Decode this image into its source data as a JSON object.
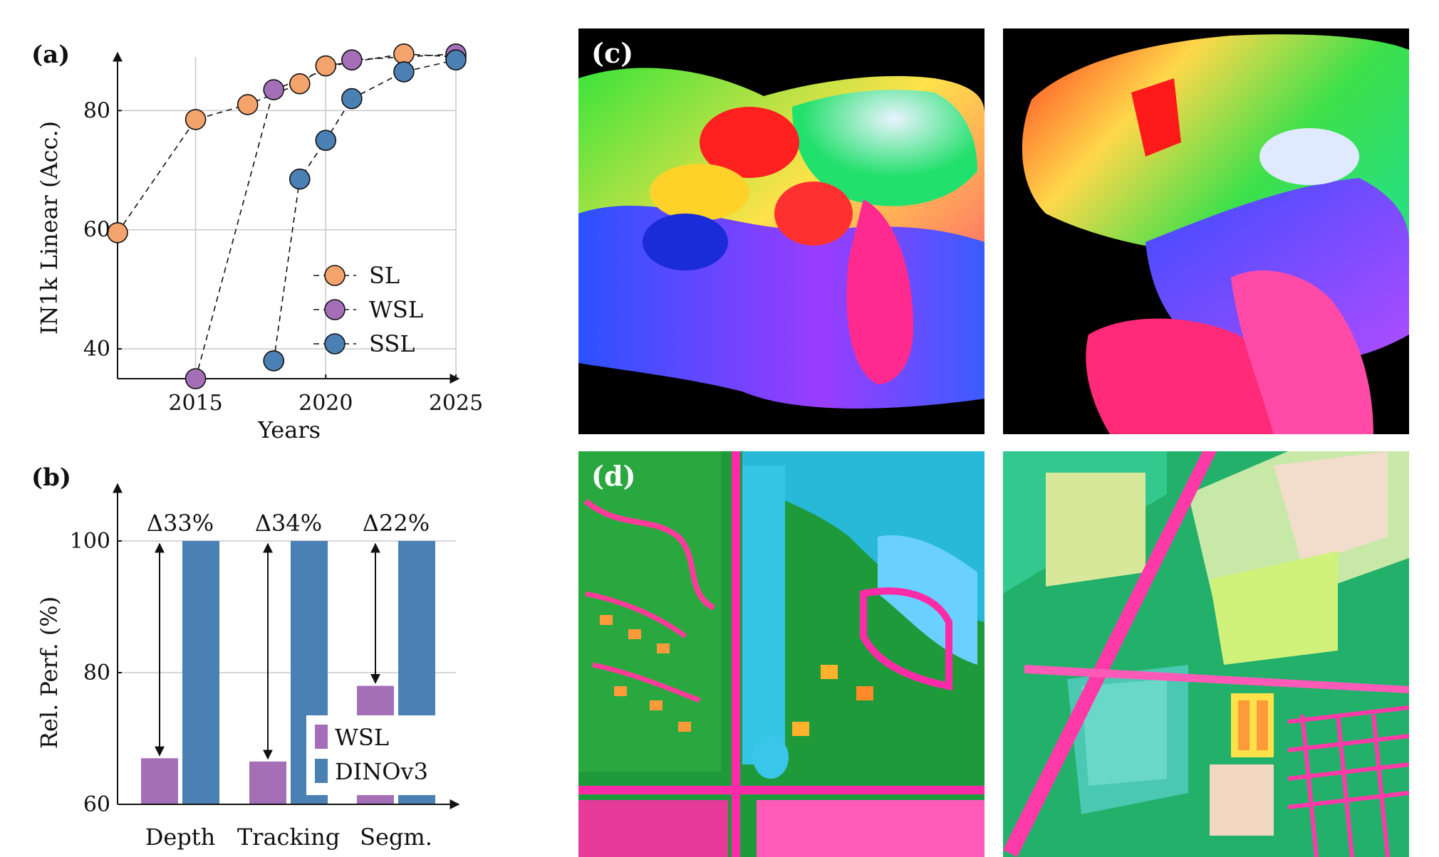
{
  "panels": {
    "a": "(a)",
    "b": "(b)",
    "c": "(c)",
    "d": "(d)"
  },
  "colors": {
    "SL": "#f4a36c",
    "WSL": "#a56fb8",
    "SSL": "#4b80b5",
    "DINOv3": "#4b80b5",
    "grid": "#c8c8c8"
  },
  "icons": {
    "legend-marker": "circle",
    "arrow": "double-headed-vertical-arrow",
    "image-c": "pca-feature-map-cat",
    "image-d": "pca-feature-map-satellite"
  },
  "chart_data": [
    {
      "id": "a",
      "type": "scatter",
      "title": "",
      "xlabel": "Years",
      "ylabel": "IN1k Linear (Acc.)",
      "xlim": [
        2012,
        2025
      ],
      "ylim": [
        35,
        89
      ],
      "xticks": [
        "2015",
        "2020",
        "2025"
      ],
      "yticks": [
        "40",
        "60",
        "80"
      ],
      "grid": true,
      "legend": "center-right",
      "series": [
        {
          "name": "SL",
          "x": [
            2012,
            2015,
            2017,
            2019,
            2020,
            2023,
            2025
          ],
          "y": [
            59.5,
            78.5,
            81,
            84.5,
            87.5,
            89.5,
            89
          ]
        },
        {
          "name": "WSL",
          "x": [
            2015,
            2018,
            2021,
            2025
          ],
          "y": [
            35,
            83.5,
            88.5,
            89.5
          ]
        },
        {
          "name": "SSL",
          "x": [
            2018,
            2019,
            2020,
            2021,
            2023,
            2025
          ],
          "y": [
            38,
            68.5,
            75,
            82,
            86.5,
            88.5
          ]
        }
      ]
    },
    {
      "id": "b",
      "type": "bar",
      "title": "",
      "xlabel": "",
      "ylabel": "Rel. Perf. (%)",
      "categories": [
        "Depth",
        "Tracking",
        "Segm."
      ],
      "ylim": [
        60,
        108
      ],
      "yticks": [
        "60",
        "80",
        "100"
      ],
      "grid": true,
      "legend": "bottom-right",
      "series": [
        {
          "name": "WSL",
          "values": [
            67,
            66.5,
            78
          ]
        },
        {
          "name": "DINOv3",
          "values": [
            100,
            100,
            100
          ]
        }
      ],
      "annotations": [
        "Δ33%",
        "Δ34%",
        "Δ22%"
      ]
    }
  ]
}
